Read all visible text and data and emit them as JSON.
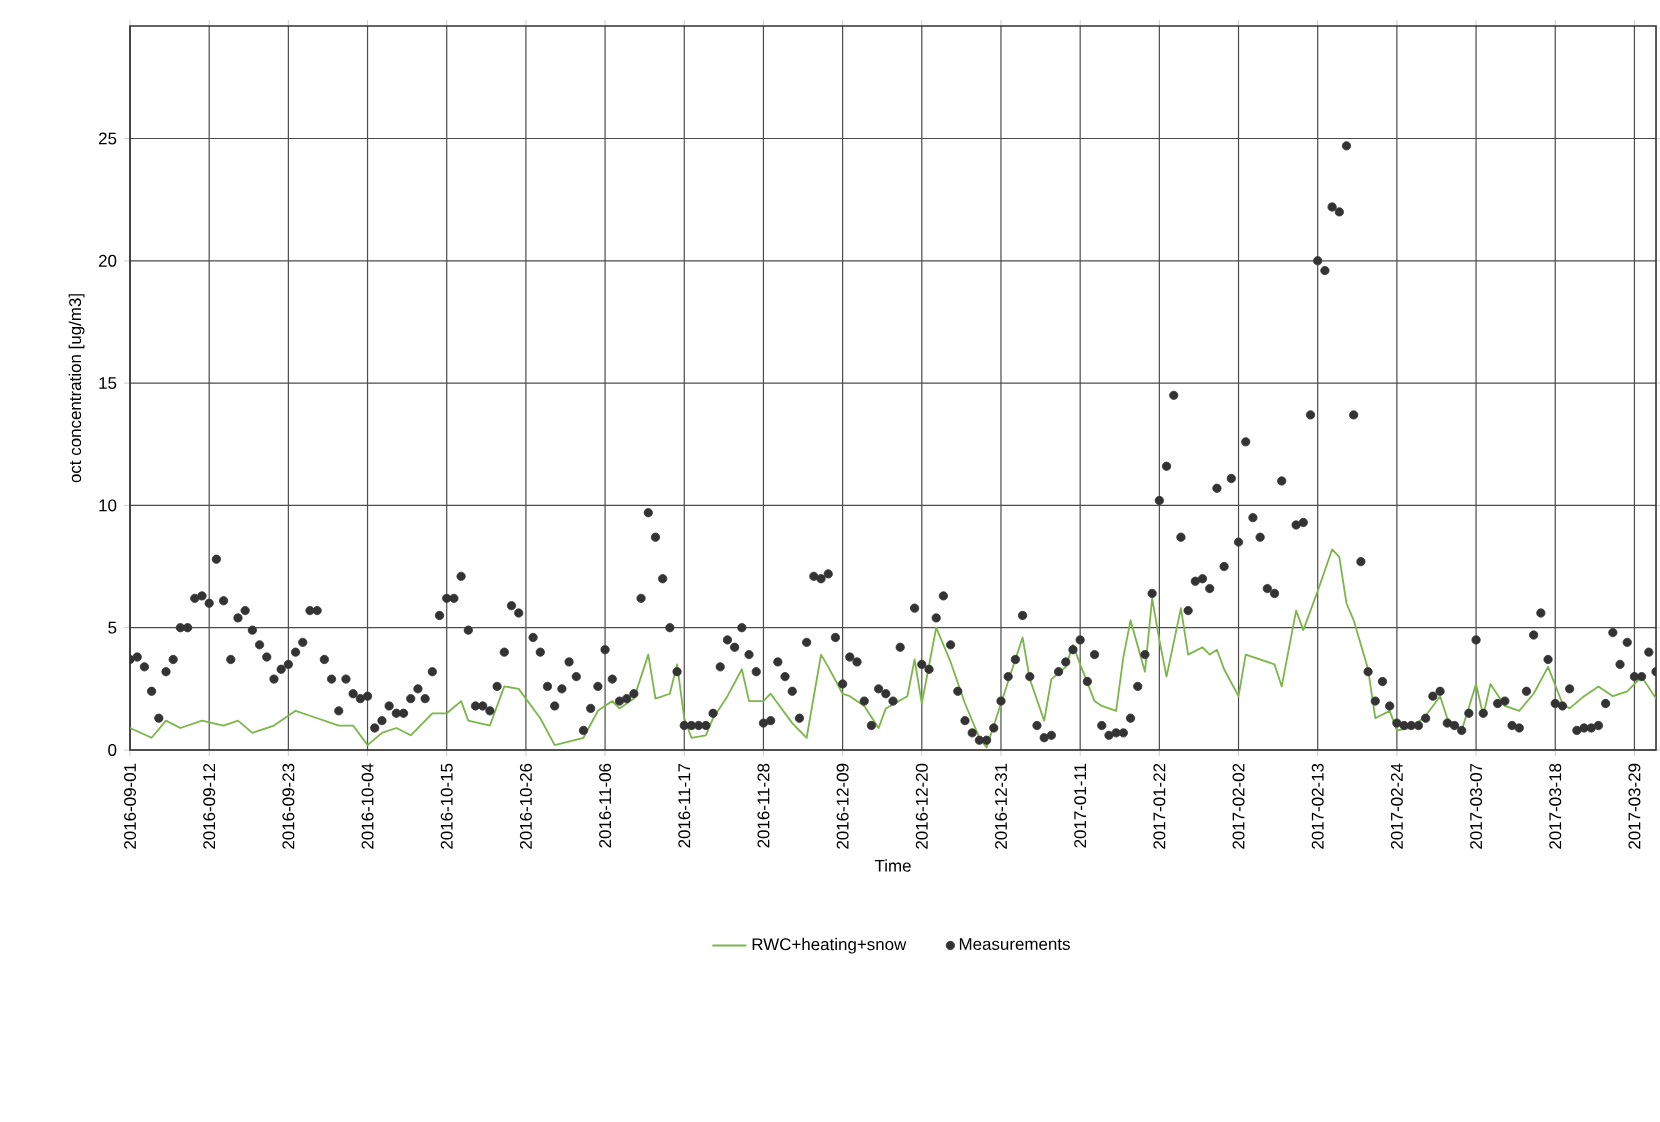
{
  "chart_data": {
    "type": "line",
    "xlabel": "Time",
    "ylabel": "oct concentration [ug/m3]",
    "xlim": [
      "2016-09-01",
      "2017-04-01"
    ],
    "ylim": [
      0,
      29.6
    ],
    "yticks": [
      0,
      5,
      10,
      15,
      20,
      25
    ],
    "xticks": [
      "2016-09-01",
      "2016-09-12",
      "2016-09-23",
      "2016-10-04",
      "2016-10-15",
      "2016-10-26",
      "2016-11-06",
      "2016-11-17",
      "2016-11-28",
      "2016-12-09",
      "2016-12-20",
      "2016-12-31",
      "2017-01-11",
      "2017-01-22",
      "2017-02-02",
      "2017-02-13",
      "2017-02-24",
      "2017-03-07",
      "2017-03-18",
      "2017-03-29"
    ],
    "grid": true,
    "legend": "bottom",
    "series": [
      {
        "name": "RWC+heating+snow",
        "type": "line",
        "color": "#7ab648",
        "line_style": "solid",
        "marker": "none",
        "x": [
          "2016-09-01",
          "2016-09-04",
          "2016-09-06",
          "2016-09-08",
          "2016-09-11",
          "2016-09-14",
          "2016-09-16",
          "2016-09-18",
          "2016-09-21",
          "2016-09-24",
          "2016-09-26",
          "2016-09-28",
          "2016-09-30",
          "2016-10-02",
          "2016-10-04",
          "2016-10-06",
          "2016-10-08",
          "2016-10-10",
          "2016-10-13",
          "2016-10-15",
          "2016-10-17",
          "2016-10-18",
          "2016-10-21",
          "2016-10-23",
          "2016-10-25",
          "2016-10-28",
          "2016-10-30",
          "2016-11-03",
          "2016-11-05",
          "2016-11-07",
          "2016-11-08",
          "2016-11-10",
          "2016-11-12",
          "2016-11-13",
          "2016-11-15",
          "2016-11-16",
          "2016-11-17",
          "2016-11-18",
          "2016-11-20",
          "2016-11-21",
          "2016-11-23",
          "2016-11-25",
          "2016-11-26",
          "2016-11-28",
          "2016-11-29",
          "2016-12-02",
          "2016-12-04",
          "2016-12-06",
          "2016-12-07",
          "2016-12-09",
          "2016-12-10",
          "2016-12-12",
          "2016-12-14",
          "2016-12-15",
          "2016-12-18",
          "2016-12-19",
          "2016-12-20",
          "2016-12-22",
          "2016-12-24",
          "2016-12-26",
          "2016-12-28",
          "2016-12-29",
          "2016-12-31",
          "2017-01-03",
          "2017-01-04",
          "2017-01-06",
          "2017-01-07",
          "2017-01-09",
          "2017-01-10",
          "2017-01-11",
          "2017-01-13",
          "2017-01-14",
          "2017-01-16",
          "2017-01-17",
          "2017-01-18",
          "2017-01-20",
          "2017-01-21",
          "2017-01-22",
          "2017-01-23",
          "2017-01-25",
          "2017-01-26",
          "2017-01-28",
          "2017-01-29",
          "2017-01-30",
          "2017-01-31",
          "2017-02-02",
          "2017-02-03",
          "2017-02-07",
          "2017-02-08",
          "2017-02-10",
          "2017-02-11",
          "2017-02-13",
          "2017-02-15",
          "2017-02-16",
          "2017-02-17",
          "2017-02-18",
          "2017-02-20",
          "2017-02-21",
          "2017-02-23",
          "2017-02-24",
          "2017-02-26",
          "2017-02-28",
          "2017-03-02",
          "2017-03-03",
          "2017-03-05",
          "2017-03-07",
          "2017-03-08",
          "2017-03-09",
          "2017-03-11",
          "2017-03-13",
          "2017-03-15",
          "2017-03-17",
          "2017-03-19",
          "2017-03-20",
          "2017-03-22",
          "2017-03-24",
          "2017-03-26",
          "2017-03-28",
          "2017-03-30",
          "2017-04-01"
        ],
        "values": [
          0.9,
          0.5,
          1.2,
          0.9,
          1.2,
          1.0,
          1.2,
          0.7,
          1.0,
          1.6,
          1.4,
          1.2,
          1.0,
          1.0,
          0.2,
          0.7,
          0.9,
          0.6,
          1.5,
          1.5,
          2.0,
          1.2,
          1.0,
          2.6,
          2.5,
          1.3,
          0.2,
          0.5,
          1.6,
          2.0,
          1.7,
          2.1,
          3.9,
          2.1,
          2.3,
          3.5,
          1.3,
          0.5,
          0.6,
          1.3,
          2.2,
          3.3,
          2.0,
          2.0,
          2.3,
          1.1,
          0.5,
          3.9,
          3.4,
          2.3,
          2.2,
          1.8,
          0.9,
          1.7,
          2.2,
          3.7,
          1.9,
          5.0,
          3.6,
          1.9,
          0.5,
          0.1,
          1.9,
          4.6,
          2.9,
          1.2,
          2.9,
          3.4,
          4.3,
          3.5,
          2.0,
          1.8,
          1.6,
          3.8,
          5.3,
          3.2,
          6.2,
          4.5,
          3.0,
          5.8,
          3.9,
          4.2,
          3.9,
          4.1,
          3.3,
          2.2,
          3.9,
          3.5,
          2.6,
          5.7,
          4.9,
          6.5,
          8.2,
          7.9,
          6.0,
          5.3,
          3.3,
          1.3,
          1.6,
          0.8,
          0.9,
          1.4,
          2.2,
          1.3,
          0.8,
          2.7,
          1.4,
          2.7,
          1.8,
          1.6,
          2.3,
          3.4,
          1.9,
          1.7,
          2.2,
          2.6,
          2.2,
          2.4,
          3.0,
          2.1
        ]
      },
      {
        "name": "Measurements",
        "type": "scatter",
        "color": "#333333",
        "marker": "circle",
        "x": [
          "2016-09-01",
          "2016-09-02",
          "2016-09-03",
          "2016-09-04",
          "2016-09-05",
          "2016-09-06",
          "2016-09-07",
          "2016-09-08",
          "2016-09-09",
          "2016-09-10",
          "2016-09-11",
          "2016-09-12",
          "2016-09-13",
          "2016-09-14",
          "2016-09-15",
          "2016-09-16",
          "2016-09-17",
          "2016-09-18",
          "2016-09-19",
          "2016-09-20",
          "2016-09-21",
          "2016-09-22",
          "2016-09-23",
          "2016-09-24",
          "2016-09-25",
          "2016-09-26",
          "2016-09-27",
          "2016-09-28",
          "2016-09-29",
          "2016-09-30",
          "2016-10-01",
          "2016-10-02",
          "2016-10-03",
          "2016-10-04",
          "2016-10-05",
          "2016-10-06",
          "2016-10-07",
          "2016-10-08",
          "2016-10-09",
          "2016-10-10",
          "2016-10-11",
          "2016-10-12",
          "2016-10-13",
          "2016-10-14",
          "2016-10-15",
          "2016-10-16",
          "2016-10-17",
          "2016-10-18",
          "2016-10-19",
          "2016-10-20",
          "2016-10-21",
          "2016-10-22",
          "2016-10-23",
          "2016-10-24",
          "2016-10-25",
          "2016-10-27",
          "2016-10-28",
          "2016-10-29",
          "2016-10-30",
          "2016-10-31",
          "2016-11-01",
          "2016-11-02",
          "2016-11-03",
          "2016-11-04",
          "2016-11-05",
          "2016-11-06",
          "2016-11-07",
          "2016-11-08",
          "2016-11-09",
          "2016-11-10",
          "2016-11-11",
          "2016-11-12",
          "2016-11-13",
          "2016-11-14",
          "2016-11-15",
          "2016-11-16",
          "2016-11-17",
          "2016-11-18",
          "2016-11-19",
          "2016-11-20",
          "2016-11-21",
          "2016-11-22",
          "2016-11-23",
          "2016-11-24",
          "2016-11-25",
          "2016-11-26",
          "2016-11-27",
          "2016-11-28",
          "2016-11-29",
          "2016-11-30",
          "2016-12-01",
          "2016-12-02",
          "2016-12-03",
          "2016-12-04",
          "2016-12-05",
          "2016-12-06",
          "2016-12-07",
          "2016-12-08",
          "2016-12-09",
          "2016-12-10",
          "2016-12-11",
          "2016-12-12",
          "2016-12-13",
          "2016-12-14",
          "2016-12-15",
          "2016-12-16",
          "2016-12-17",
          "2016-12-19",
          "2016-12-20",
          "2016-12-21",
          "2016-12-22",
          "2016-12-23",
          "2016-12-24",
          "2016-12-25",
          "2016-12-26",
          "2016-12-27",
          "2016-12-28",
          "2016-12-29",
          "2016-12-30",
          "2016-12-31",
          "2017-01-01",
          "2017-01-02",
          "2017-01-03",
          "2017-01-04",
          "2017-01-05",
          "2017-01-06",
          "2017-01-07",
          "2017-01-08",
          "2017-01-09",
          "2017-01-10",
          "2017-01-11",
          "2017-01-12",
          "2017-01-13",
          "2017-01-14",
          "2017-01-15",
          "2017-01-16",
          "2017-01-17",
          "2017-01-18",
          "2017-01-19",
          "2017-01-20",
          "2017-01-21",
          "2017-01-22",
          "2017-01-23",
          "2017-01-24",
          "2017-01-25",
          "2017-01-26",
          "2017-01-27",
          "2017-01-28",
          "2017-01-29",
          "2017-01-30",
          "2017-01-31",
          "2017-02-01",
          "2017-02-02",
          "2017-02-03",
          "2017-02-04",
          "2017-02-05",
          "2017-02-06",
          "2017-02-07",
          "2017-02-08",
          "2017-02-10",
          "2017-02-11",
          "2017-02-12",
          "2017-02-13",
          "2017-02-14",
          "2017-02-15",
          "2017-02-16",
          "2017-02-17",
          "2017-02-18",
          "2017-02-19",
          "2017-02-20",
          "2017-02-21",
          "2017-02-22",
          "2017-02-23",
          "2017-02-24",
          "2017-02-25",
          "2017-02-26",
          "2017-02-27",
          "2017-02-28",
          "2017-03-01",
          "2017-03-02",
          "2017-03-03",
          "2017-03-04",
          "2017-03-05",
          "2017-03-06",
          "2017-03-07",
          "2017-03-08",
          "2017-03-10",
          "2017-03-11",
          "2017-03-12",
          "2017-03-13",
          "2017-03-14",
          "2017-03-15",
          "2017-03-16",
          "2017-03-17",
          "2017-03-18",
          "2017-03-19",
          "2017-03-20",
          "2017-03-21",
          "2017-03-22",
          "2017-03-23",
          "2017-03-24",
          "2017-03-25",
          "2017-03-26",
          "2017-03-27",
          "2017-03-28",
          "2017-03-29",
          "2017-03-30",
          "2017-03-31",
          "2017-04-01"
        ],
        "values": [
          3.7,
          3.8,
          3.4,
          2.4,
          1.3,
          3.2,
          3.7,
          5.0,
          5.0,
          6.2,
          6.3,
          6.0,
          7.8,
          6.1,
          3.7,
          5.4,
          5.7,
          4.9,
          4.3,
          3.8,
          2.9,
          3.3,
          3.5,
          4.0,
          4.4,
          5.7,
          5.7,
          3.7,
          2.9,
          1.6,
          2.9,
          2.3,
          2.1,
          2.2,
          0.9,
          1.2,
          1.8,
          1.5,
          1.5,
          2.1,
          2.5,
          2.1,
          3.2,
          5.5,
          6.2,
          6.2,
          7.1,
          4.9,
          1.8,
          1.8,
          1.6,
          2.6,
          4.0,
          5.9,
          5.6,
          4.6,
          4.0,
          2.6,
          1.8,
          2.5,
          3.6,
          3.0,
          0.8,
          1.7,
          2.6,
          4.1,
          2.9,
          2.0,
          2.1,
          2.3,
          6.2,
          9.7,
          8.7,
          7.0,
          5.0,
          3.2,
          1.0,
          1.0,
          1.0,
          1.0,
          1.5,
          3.4,
          4.5,
          4.2,
          5.0,
          3.9,
          3.2,
          1.1,
          1.2,
          3.6,
          3.0,
          2.4,
          1.3,
          4.4,
          7.1,
          7.0,
          7.2,
          4.6,
          2.7,
          3.8,
          3.6,
          2.0,
          1.0,
          2.5,
          2.3,
          2.0,
          4.2,
          5.8,
          3.5,
          3.3,
          5.4,
          6.3,
          4.3,
          2.4,
          1.2,
          0.7,
          0.4,
          0.4,
          0.9,
          2.0,
          3.0,
          3.7,
          5.5,
          3.0,
          1.0,
          0.5,
          0.6,
          3.2,
          3.6,
          4.1,
          4.5,
          2.8,
          3.9,
          1.0,
          0.6,
          0.7,
          0.7,
          1.3,
          2.6,
          3.9,
          6.4,
          10.2,
          11.6,
          14.5,
          8.7,
          5.7,
          6.9,
          7.0,
          6.6,
          10.7,
          7.5,
          11.1,
          8.5,
          12.6,
          9.5,
          8.7,
          6.6,
          6.4,
          11.0,
          9.2,
          9.3,
          13.7,
          20.0,
          19.6,
          22.2,
          22.0,
          24.7,
          13.7,
          7.7,
          3.2,
          2.0,
          2.8,
          1.8,
          1.1,
          1.0,
          1.0,
          1.0,
          1.3,
          2.2,
          2.4,
          1.1,
          1.0,
          0.8,
          1.5,
          4.5,
          1.5,
          1.9,
          2.0,
          1.0,
          0.9,
          2.4,
          4.7,
          5.6,
          3.7,
          1.9,
          1.8,
          2.5,
          0.8,
          0.9,
          0.9,
          1.0,
          1.9,
          4.8,
          3.5,
          4.4,
          3.0,
          3.0,
          4.0,
          3.2
        ]
      }
    ]
  }
}
